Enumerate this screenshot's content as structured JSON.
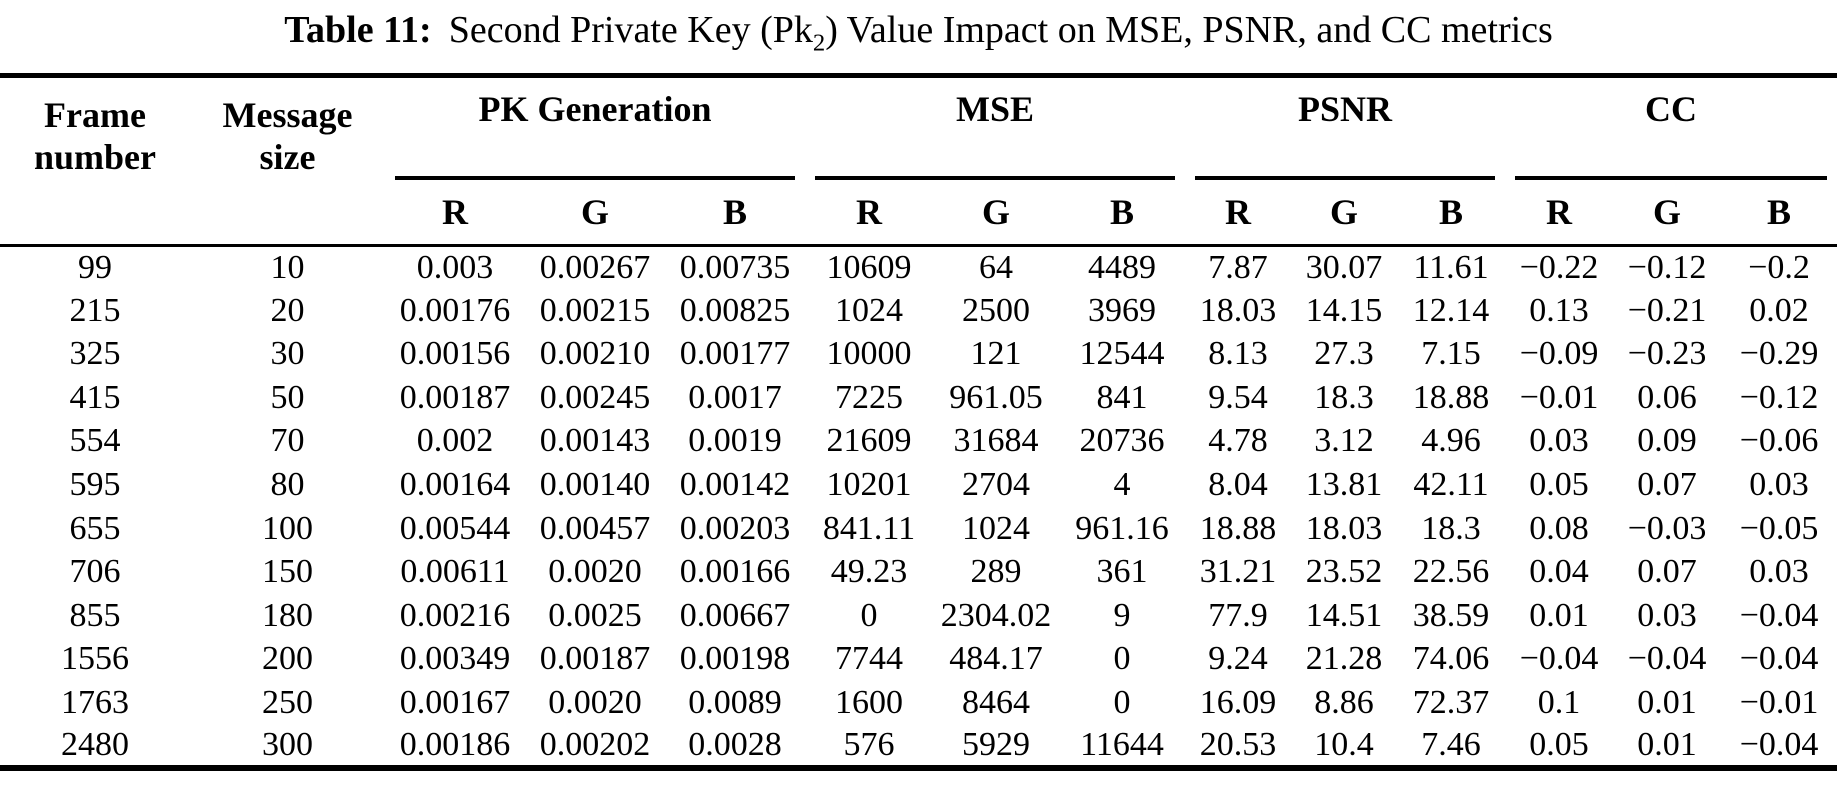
{
  "title": {
    "prefix": "Table 11:",
    "pre": "Second Private Key (Pk",
    "sub": "2",
    "post": ") Value Impact on MSE, PSNR, and CC metrics"
  },
  "header": {
    "frame": {
      "line1": "Frame",
      "line2": "number"
    },
    "message": {
      "line1": "Message",
      "line2": "size"
    },
    "groups": [
      {
        "label": "PK Generation"
      },
      {
        "label": "MSE"
      },
      {
        "label": "PSNR"
      },
      {
        "label": "CC"
      }
    ],
    "channels": [
      "R",
      "G",
      "B"
    ]
  },
  "chart_data": {
    "type": "table",
    "title": "Table 11: Second Private Key (Pk2) Value Impact on MSE, PSNR, and CC metrics",
    "columns": [
      "Frame number",
      "Message size",
      "PK Generation R",
      "PK Generation G",
      "PK Generation B",
      "MSE R",
      "MSE G",
      "MSE B",
      "PSNR R",
      "PSNR G",
      "PSNR B",
      "CC R",
      "CC G",
      "CC B"
    ],
    "rows": [
      [
        "99",
        "10",
        "0.003",
        "0.00267",
        "0.00735",
        "10609",
        "64",
        "4489",
        "7.87",
        "30.07",
        "11.61",
        "−0.22",
        "−0.12",
        "−0.2"
      ],
      [
        "215",
        "20",
        "0.00176",
        "0.00215",
        "0.00825",
        "1024",
        "2500",
        "3969",
        "18.03",
        "14.15",
        "12.14",
        "0.13",
        "−0.21",
        "0.02"
      ],
      [
        "325",
        "30",
        "0.00156",
        "0.00210",
        "0.00177",
        "10000",
        "121",
        "12544",
        "8.13",
        "27.3",
        "7.15",
        "−0.09",
        "−0.23",
        "−0.29"
      ],
      [
        "415",
        "50",
        "0.00187",
        "0.00245",
        "0.0017",
        "7225",
        "961.05",
        "841",
        "9.54",
        "18.3",
        "18.88",
        "−0.01",
        "0.06",
        "−0.12"
      ],
      [
        "554",
        "70",
        "0.002",
        "0.00143",
        "0.0019",
        "21609",
        "31684",
        "20736",
        "4.78",
        "3.12",
        "4.96",
        "0.03",
        "0.09",
        "−0.06"
      ],
      [
        "595",
        "80",
        "0.00164",
        "0.00140",
        "0.00142",
        "10201",
        "2704",
        "4",
        "8.04",
        "13.81",
        "42.11",
        "0.05",
        "0.07",
        "0.03"
      ],
      [
        "655",
        "100",
        "0.00544",
        "0.00457",
        "0.00203",
        "841.11",
        "1024",
        "961.16",
        "18.88",
        "18.03",
        "18.3",
        "0.08",
        "−0.03",
        "−0.05"
      ],
      [
        "706",
        "150",
        "0.00611",
        "0.0020",
        "0.00166",
        "49.23",
        "289",
        "361",
        "31.21",
        "23.52",
        "22.56",
        "0.04",
        "0.07",
        "0.03"
      ],
      [
        "855",
        "180",
        "0.00216",
        "0.0025",
        "0.00667",
        "0",
        "2304.02",
        "9",
        "77.9",
        "14.51",
        "38.59",
        "0.01",
        "0.03",
        "−0.04"
      ],
      [
        "1556",
        "200",
        "0.00349",
        "0.00187",
        "0.00198",
        "7744",
        "484.17",
        "0",
        "9.24",
        "21.28",
        "74.06",
        "−0.04",
        "−0.04",
        "−0.04"
      ],
      [
        "1763",
        "250",
        "0.00167",
        "0.0020",
        "0.0089",
        "1600",
        "8464",
        "0",
        "16.09",
        "8.86",
        "72.37",
        "0.1",
        "0.01",
        "−0.01"
      ],
      [
        "2480",
        "300",
        "0.00186",
        "0.00202",
        "0.0028",
        "576",
        "5929",
        "11644",
        "20.53",
        "10.4",
        "7.46",
        "0.05",
        "0.01",
        "−0.04"
      ]
    ]
  }
}
